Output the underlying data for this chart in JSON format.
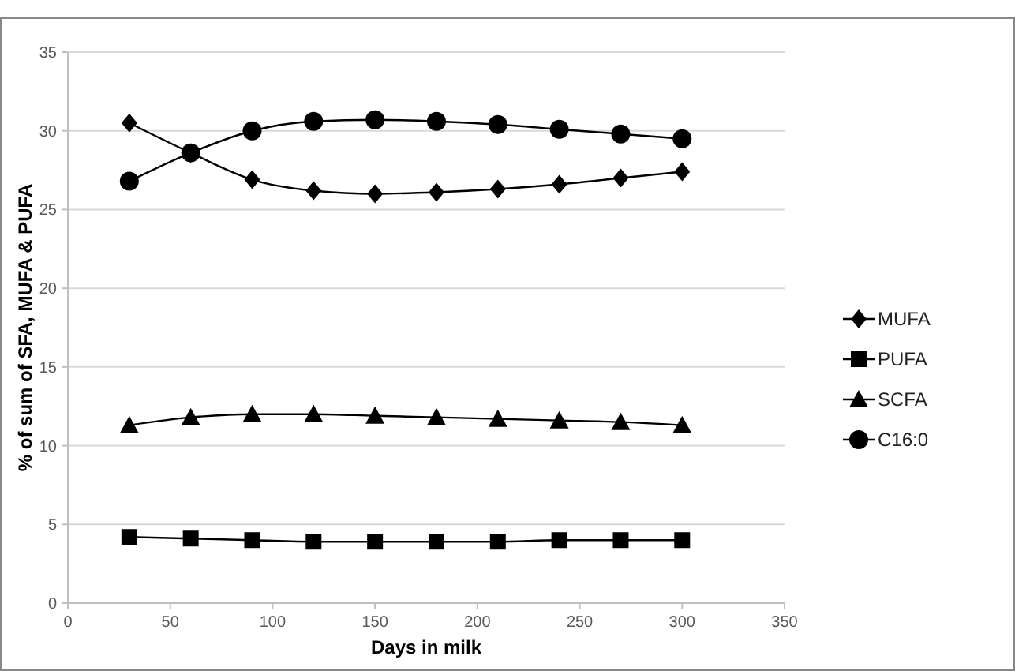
{
  "chart_data": {
    "type": "line",
    "xlabel": "Days in milk",
    "ylabel": "% of sum of SFA, MUFA & PUFA",
    "x": [
      30,
      60,
      90,
      120,
      150,
      180,
      210,
      240,
      270,
      300
    ],
    "xlim": [
      0,
      350
    ],
    "xticks": [
      0,
      50,
      100,
      150,
      200,
      250,
      300,
      350
    ],
    "ylim": [
      0,
      35
    ],
    "yticks": [
      0,
      5,
      10,
      15,
      20,
      25,
      30,
      35
    ],
    "grid": "y",
    "legend": "right",
    "series": [
      {
        "name": "MUFA",
        "color": "#000000",
        "marker": "diamond",
        "values": [
          30.5,
          28.6,
          26.9,
          26.2,
          26.0,
          26.1,
          26.3,
          26.6,
          27.0,
          27.4
        ]
      },
      {
        "name": "PUFA",
        "color": "#000000",
        "marker": "square",
        "values": [
          4.2,
          4.1,
          4.0,
          3.9,
          3.9,
          3.9,
          3.9,
          4.0,
          4.0,
          4.0
        ]
      },
      {
        "name": "SCFA",
        "color": "#000000",
        "marker": "triangle",
        "values": [
          11.3,
          11.8,
          12.0,
          12.0,
          11.9,
          11.8,
          11.7,
          11.6,
          11.5,
          11.3
        ]
      },
      {
        "name": "C16:0",
        "color": "#000000",
        "marker": "circle",
        "values": [
          26.8,
          28.6,
          30.0,
          30.6,
          30.7,
          30.6,
          30.4,
          30.1,
          29.8,
          29.5
        ]
      }
    ]
  }
}
